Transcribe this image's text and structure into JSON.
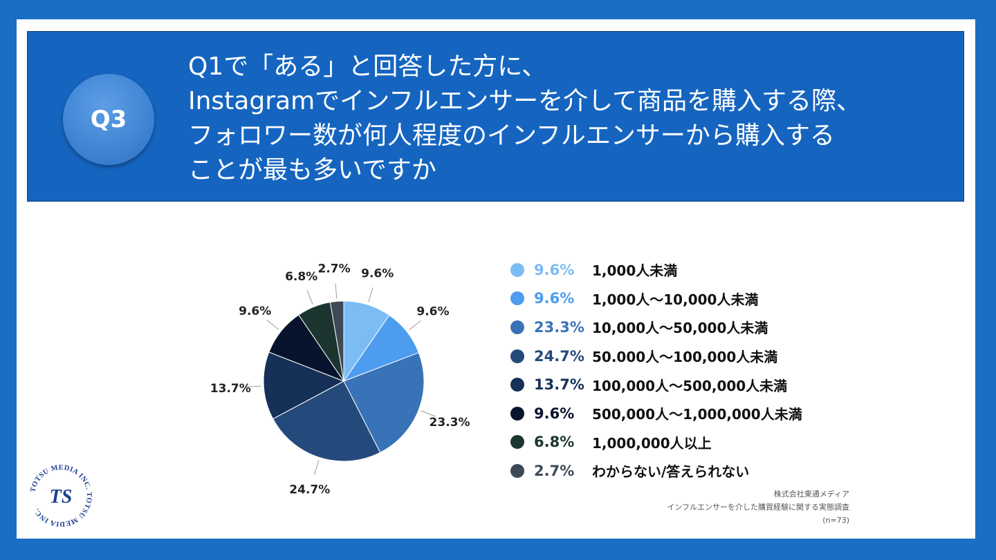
{
  "question": {
    "badge": "Q3",
    "lines": [
      "Q1で「ある」と回答した方に、",
      "Instagramでインフルエンサーを介して商品を購入する際、",
      "フォロワー数が何人程度のインフルエンサーから購入する",
      "ことが最も多いですか"
    ]
  },
  "chart_data": {
    "type": "pie",
    "title": "",
    "slices": [
      {
        "label": "1,000人未満",
        "value": 9.6,
        "value_label": "9.6%",
        "color": "#7bbcf5"
      },
      {
        "label": "1,000人～10,000人未満",
        "value": 9.6,
        "value_label": "9.6%",
        "color": "#4d9cf0"
      },
      {
        "label": "10,000人～50,000人未満",
        "value": 23.3,
        "value_label": "23.3%",
        "color": "#3873b8"
      },
      {
        "label": "50.000人～100,000人未満",
        "value": 24.7,
        "value_label": "24.7%",
        "color": "#244a7c"
      },
      {
        "label": "100,000人～500,000人未満",
        "value": 13.7,
        "value_label": "13.7%",
        "color": "#163058"
      },
      {
        "label": "500,000人～1,000,000人未満",
        "value": 9.6,
        "value_label": "9.6%",
        "color": "#08142e"
      },
      {
        "label": "1,000,000人以上",
        "value": 6.8,
        "value_label": "6.8%",
        "color": "#1c3530"
      },
      {
        "label": "わからない/答えられない",
        "value": 2.7,
        "value_label": "2.7%",
        "color": "#3d4a56"
      }
    ]
  },
  "source": {
    "company": "株式会社東通メディア",
    "survey": "インフルエンサーを介した購買経験に関する実態調査",
    "n": "(n=73)"
  },
  "logo": {
    "text": "TOTSU MEDIA INC. TOTSU MEDIA INC.",
    "mark": "TS"
  }
}
